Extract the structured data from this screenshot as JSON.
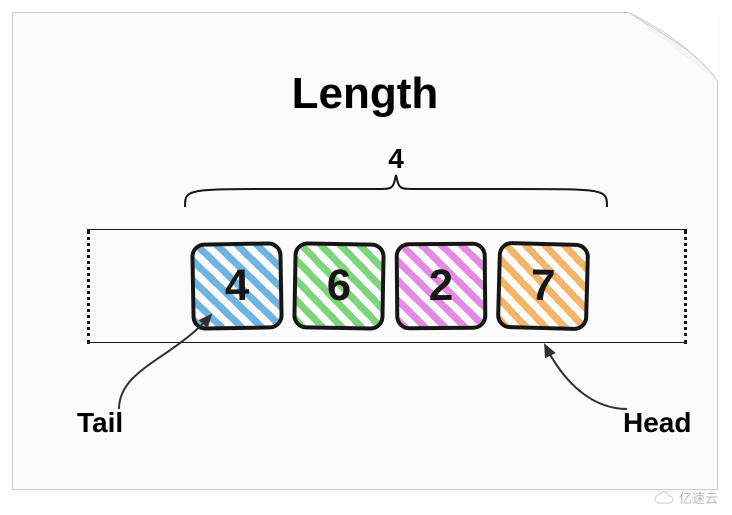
{
  "diagram": {
    "title": "Length",
    "title_fontsize": 44,
    "brace": {
      "label": "4",
      "label_fontsize": 28,
      "color": "#161616",
      "stroke_width": 2
    },
    "container": {
      "border_color": "#161616",
      "dotted_edge_color": "#161616"
    },
    "cells": [
      {
        "value": "4",
        "hatch_color": "#6fb3e0",
        "value_fontsize": 44
      },
      {
        "value": "6",
        "hatch_color": "#7dd47d",
        "value_fontsize": 44
      },
      {
        "value": "2",
        "hatch_color": "#e38be3",
        "value_fontsize": 44
      },
      {
        "value": "7",
        "hatch_color": "#f2b56b",
        "value_fontsize": 44
      }
    ],
    "cell_style": {
      "size": 92,
      "border_color": "#161616",
      "border_width": 4,
      "border_radius": 14,
      "hatch_opacity": 0.85,
      "hatch_stroke": 7,
      "gap": 10
    },
    "pointers": {
      "tail": {
        "label": "Tail",
        "fontsize": 28
      },
      "head": {
        "label": "Head",
        "fontsize": 28
      },
      "arrow_color": "#303030",
      "arrow_stroke": 2
    },
    "paper": {
      "background": "#fbfbfb",
      "border_color": "#cfcfcf",
      "fold_size": 90
    },
    "watermark": {
      "text": "亿速云",
      "color": "#b9b9b9"
    }
  }
}
